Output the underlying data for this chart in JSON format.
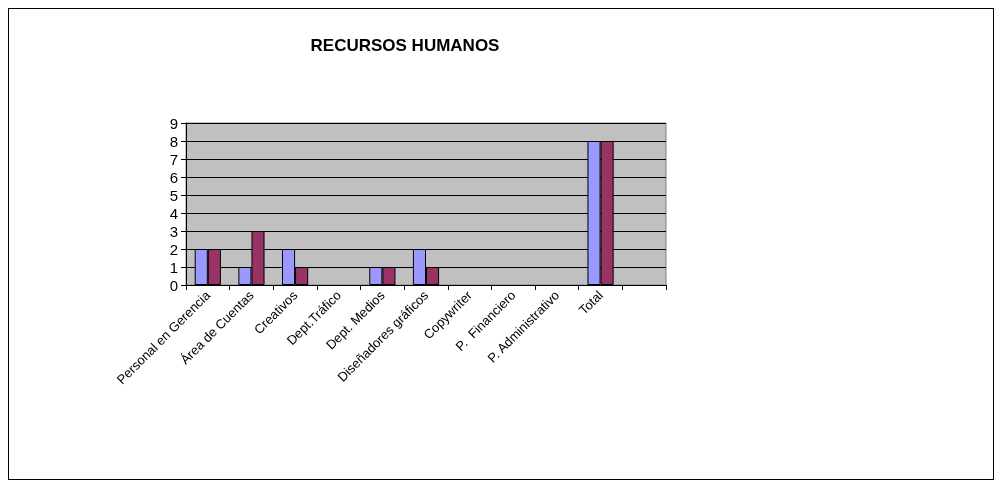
{
  "chart_data": {
    "type": "bar",
    "title": "RECURSOS HUMANOS",
    "categories": [
      "Personal en Gerencia",
      "Área de Cuentas",
      "Creativos",
      "Dept.Tráfico",
      "Dept. Medios",
      "Diseñadores gráficos",
      "Copywriter",
      "P.  Financiero",
      "P. Administrativo",
      "Total",
      null
    ],
    "series": [
      {
        "color": "#9999ff",
        "values": [
          2,
          1,
          2,
          null,
          1,
          2,
          null,
          null,
          null,
          8,
          null
        ]
      },
      {
        "color": "#993366",
        "values": [
          2,
          3,
          1,
          null,
          1,
          1,
          null,
          null,
          null,
          8,
          null
        ]
      }
    ],
    "ylim": [
      0,
      9
    ],
    "yticks": [
      0,
      1,
      2,
      3,
      4,
      5,
      6,
      7,
      8,
      9
    ],
    "grid": "y"
  }
}
